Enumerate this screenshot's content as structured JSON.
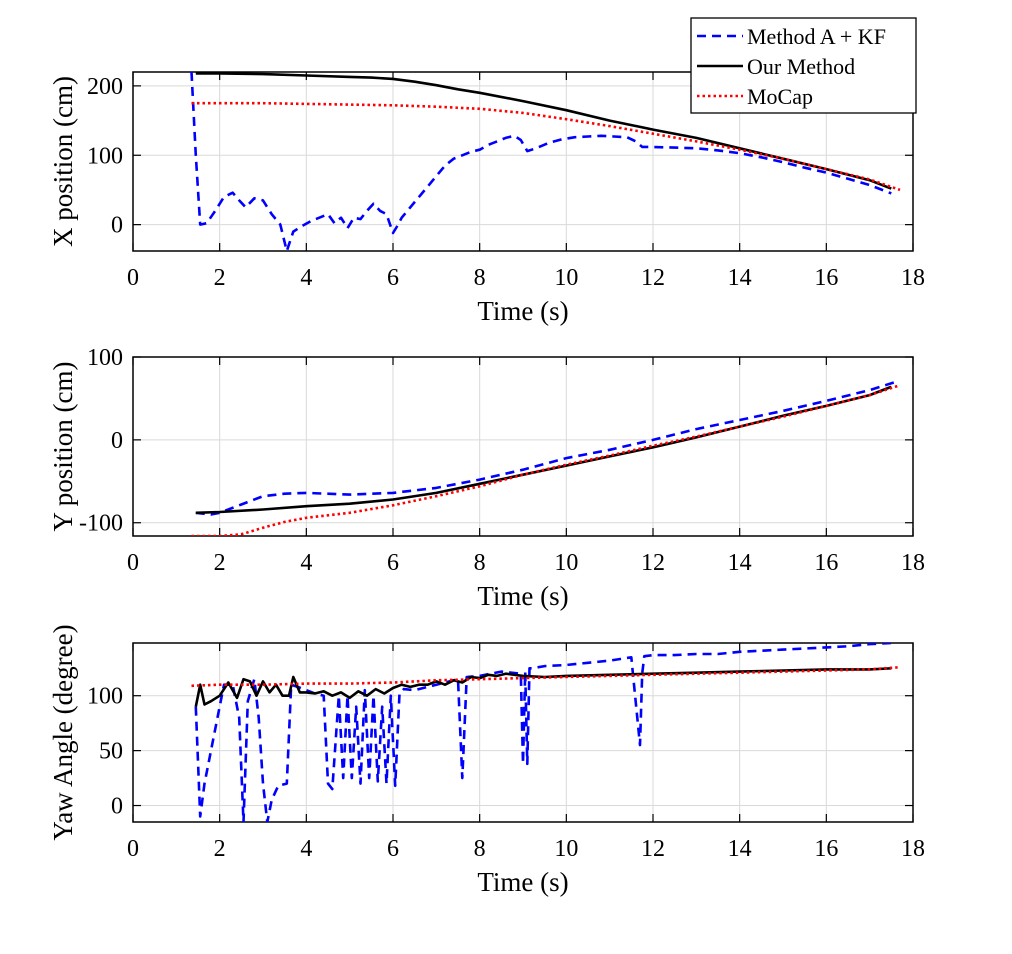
{
  "figure": {
    "colors": {
      "method_a_kf": "#0000ff",
      "our_method": "#000000",
      "mocap": "#ff0000",
      "grid": "#d9d9d9"
    }
  },
  "legend": {
    "placement": "top-right",
    "entries": [
      {
        "label": "Method A + KF",
        "style": "dashed",
        "color": "#0000ff"
      },
      {
        "label": "Our Method",
        "style": "solid",
        "color": "#000000"
      },
      {
        "label": "MoCap",
        "style": "dotted",
        "color": "#ff0000"
      }
    ]
  },
  "chart_data": [
    {
      "type": "line",
      "xlabel": "Time (s)",
      "ylabel": "X position (cm)",
      "xlim": [
        0,
        18
      ],
      "ylim": [
        -38,
        220
      ],
      "xticks": [
        0,
        2,
        4,
        6,
        8,
        10,
        12,
        14,
        16,
        18
      ],
      "yticks": [
        0,
        100,
        200
      ],
      "grid": true,
      "series": [
        {
          "name": "Method A + KF",
          "style": "dashed",
          "color": "#0000ff",
          "x": [
            1.35,
            1.45,
            1.55,
            1.7,
            1.9,
            2.1,
            2.3,
            2.45,
            2.6,
            2.8,
            3.0,
            3.2,
            3.4,
            3.55,
            3.7,
            3.9,
            4.1,
            4.3,
            4.5,
            4.65,
            4.8,
            4.95,
            5.1,
            5.25,
            5.4,
            5.55,
            5.7,
            5.85,
            6.0,
            6.1,
            6.2,
            6.4,
            6.6,
            6.8,
            7.0,
            7.2,
            7.4,
            7.6,
            7.8,
            8.0,
            8.2,
            8.4,
            8.6,
            8.8,
            8.95,
            9.1,
            9.3,
            9.6,
            9.9,
            10.2,
            10.5,
            10.8,
            11.1,
            11.4,
            11.6,
            11.75,
            11.9,
            12.5,
            13.0,
            13.5,
            14.0,
            14.5,
            15.0,
            15.5,
            16.0,
            16.5,
            17.0,
            17.5
          ],
          "y": [
            220,
            100,
            0,
            2,
            20,
            40,
            46,
            35,
            25,
            38,
            35,
            15,
            0,
            -38,
            -10,
            -2,
            5,
            10,
            15,
            2,
            10,
            -5,
            10,
            8,
            20,
            30,
            20,
            15,
            -12,
            -2,
            10,
            25,
            40,
            55,
            70,
            85,
            95,
            100,
            105,
            108,
            115,
            120,
            125,
            128,
            122,
            106,
            110,
            118,
            123,
            126,
            127,
            128,
            127,
            126,
            120,
            112,
            112,
            111,
            110,
            107,
            103,
            97,
            90,
            82,
            75,
            66,
            57,
            45
          ]
        },
        {
          "name": "Our Method",
          "style": "solid",
          "color": "#000000",
          "x": [
            1.45,
            2.0,
            3.0,
            4.0,
            5.0,
            5.5,
            6.0,
            6.5,
            7.0,
            7.5,
            8.0,
            9.0,
            10.0,
            11.0,
            12.0,
            13.0,
            14.0,
            15.0,
            16.0,
            17.0,
            17.5
          ],
          "y": [
            218,
            218,
            217,
            215,
            213,
            212,
            210,
            206,
            201,
            195,
            190,
            178,
            165,
            150,
            137,
            125,
            110,
            95,
            80,
            64,
            52
          ]
        },
        {
          "name": "MoCap",
          "style": "dotted",
          "color": "#ff0000",
          "x": [
            1.35,
            2.0,
            3.0,
            4.0,
            5.0,
            6.0,
            7.0,
            8.0,
            9.0,
            10.0,
            11.0,
            12.0,
            13.0,
            14.0,
            15.0,
            16.0,
            17.0,
            17.7
          ],
          "y": [
            175,
            175,
            175,
            174,
            173,
            172,
            170,
            167,
            161,
            152,
            142,
            131,
            120,
            108,
            95,
            80,
            65,
            50
          ]
        }
      ]
    },
    {
      "type": "line",
      "xlabel": "Time (s)",
      "ylabel": "Y position (cm)",
      "xlim": [
        0,
        18
      ],
      "ylim": [
        -116,
        100
      ],
      "xticks": [
        0,
        2,
        4,
        6,
        8,
        10,
        12,
        14,
        16,
        18
      ],
      "yticks": [
        -100,
        0,
        100
      ],
      "grid": true,
      "series": [
        {
          "name": "Method A + KF",
          "style": "dashed",
          "color": "#0000ff",
          "x": [
            1.45,
            1.8,
            2.0,
            2.2,
            2.5,
            3.0,
            3.5,
            4.0,
            5.0,
            6.0,
            7.0,
            8.0,
            9.0,
            10.0,
            11.0,
            12.0,
            13.0,
            14.0,
            15.0,
            16.0,
            17.0,
            17.6
          ],
          "y": [
            -88,
            -90,
            -88,
            -84,
            -78,
            -68,
            -65,
            -64,
            -66,
            -64,
            -58,
            -48,
            -36,
            -22,
            -12,
            0,
            13,
            24,
            35,
            47,
            60,
            70
          ]
        },
        {
          "name": "Our Method",
          "style": "solid",
          "color": "#000000",
          "x": [
            1.45,
            2.0,
            3.0,
            4.0,
            5.0,
            6.0,
            7.0,
            8.0,
            9.0,
            10.0,
            11.0,
            12.0,
            13.0,
            14.0,
            15.0,
            16.0,
            17.0,
            17.5
          ],
          "y": [
            -88,
            -87,
            -84,
            -80,
            -77,
            -72,
            -64,
            -53,
            -42,
            -31,
            -20,
            -9,
            3,
            16,
            29,
            41,
            54,
            64
          ]
        },
        {
          "name": "MoCap",
          "style": "dotted",
          "color": "#ff0000",
          "x": [
            1.35,
            2.0,
            2.5,
            3.0,
            3.5,
            4.0,
            5.0,
            6.0,
            7.0,
            8.0,
            9.0,
            10.0,
            11.0,
            12.0,
            13.0,
            14.0,
            15.0,
            16.0,
            17.0,
            17.7
          ],
          "y": [
            -116,
            -116,
            -114,
            -106,
            -99,
            -94,
            -88,
            -79,
            -68,
            -56,
            -42,
            -30,
            -19,
            -7,
            4,
            16,
            28,
            41,
            54,
            66
          ]
        }
      ]
    },
    {
      "type": "line",
      "xlabel": "Time (s)",
      "ylabel": "Yaw Angle (degree)",
      "xlim": [
        0,
        18
      ],
      "ylim": [
        -15,
        148
      ],
      "xticks": [
        0,
        2,
        4,
        6,
        8,
        10,
        12,
        14,
        16,
        18
      ],
      "yticks": [
        0,
        50,
        100
      ],
      "grid": true,
      "series": [
        {
          "name": "Method A + KF",
          "style": "dashed",
          "color": "#0000ff",
          "x": [
            1.45,
            1.55,
            1.65,
            1.9,
            2.1,
            2.3,
            2.45,
            2.55,
            2.65,
            2.8,
            2.9,
            3.0,
            3.1,
            3.2,
            3.35,
            3.55,
            3.65,
            3.8,
            4.0,
            4.2,
            4.4,
            4.5,
            4.6,
            4.75,
            4.85,
            4.95,
            5.05,
            5.15,
            5.25,
            5.35,
            5.45,
            5.55,
            5.65,
            5.75,
            5.85,
            5.95,
            6.05,
            6.15,
            6.25,
            6.5,
            7.0,
            7.5,
            7.6,
            7.7,
            8.0,
            8.5,
            8.95,
            9.0,
            9.05,
            9.1,
            9.15,
            9.2,
            9.5,
            10.0,
            10.5,
            11.0,
            11.5,
            11.7,
            11.75,
            11.8,
            12.0,
            12.5,
            13.0,
            13.5,
            14.0,
            14.5,
            15.0,
            15.5,
            16.0,
            16.5,
            17.0,
            17.5
          ],
          "y": [
            90,
            -10,
            20,
            70,
            110,
            110,
            80,
            -15,
            95,
            115,
            80,
            20,
            -15,
            5,
            18,
            20,
            110,
            108,
            105,
            102,
            100,
            20,
            15,
            100,
            25,
            100,
            25,
            90,
            20,
            105,
            25,
            100,
            22,
            90,
            20,
            100,
            18,
            102,
            106,
            105,
            110,
            115,
            25,
            117,
            118,
            122,
            120,
            38,
            122,
            38,
            125,
            125,
            127,
            128,
            130,
            132,
            135,
            55,
            120,
            136,
            137,
            137,
            138,
            138,
            140,
            141,
            142,
            143,
            144,
            145,
            147,
            148
          ]
        },
        {
          "name": "Our Method",
          "style": "solid",
          "color": "#000000",
          "x": [
            1.45,
            1.55,
            1.65,
            1.8,
            2.0,
            2.2,
            2.4,
            2.55,
            2.7,
            2.85,
            3.0,
            3.15,
            3.3,
            3.45,
            3.6,
            3.7,
            3.85,
            4.0,
            4.2,
            4.4,
            4.6,
            4.8,
            5.0,
            5.2,
            5.4,
            5.6,
            5.8,
            6.0,
            6.2,
            6.4,
            6.6,
            6.8,
            7.0,
            7.2,
            7.4,
            7.6,
            7.8,
            8.0,
            8.2,
            8.4,
            8.6,
            9.0,
            9.5,
            10.0,
            11.0,
            12.0,
            13.0,
            14.0,
            15.0,
            16.0,
            17.0,
            17.5
          ],
          "y": [
            90,
            110,
            92,
            95,
            100,
            112,
            98,
            115,
            113,
            100,
            113,
            103,
            110,
            100,
            100,
            117,
            103,
            103,
            102,
            104,
            100,
            103,
            98,
            104,
            100,
            106,
            102,
            107,
            110,
            108,
            110,
            110,
            113,
            110,
            114,
            112,
            117,
            116,
            119,
            118,
            120,
            118,
            117,
            118,
            119,
            120,
            121,
            122,
            123,
            124,
            124,
            125
          ]
        },
        {
          "name": "MoCap",
          "style": "dotted",
          "color": "#ff0000",
          "x": [
            1.35,
            2.0,
            3.0,
            4.0,
            5.0,
            6.0,
            7.0,
            8.0,
            9.0,
            10.0,
            11.0,
            12.0,
            13.0,
            14.0,
            15.0,
            16.0,
            17.0,
            17.7
          ],
          "y": [
            109,
            110,
            110,
            111,
            111,
            112,
            114,
            115,
            116,
            117,
            118,
            119,
            120,
            121,
            122,
            123,
            124,
            126
          ]
        }
      ]
    }
  ]
}
